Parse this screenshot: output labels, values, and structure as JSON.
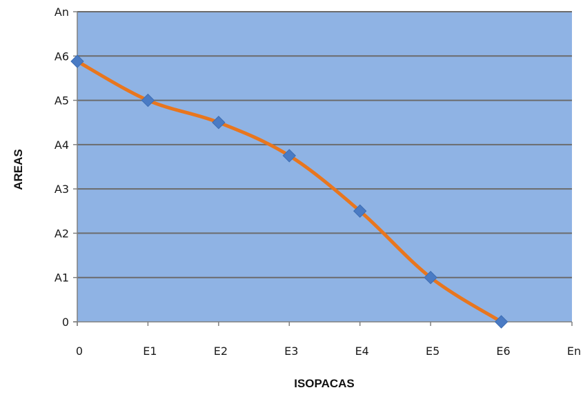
{
  "chart_data": {
    "type": "line",
    "title": "",
    "xlabel": "ISOPACAS",
    "ylabel": "AREAS",
    "x_ticks": [
      "0",
      "E1",
      "E2",
      "E3",
      "E4",
      "E5",
      "E6",
      "En"
    ],
    "y_ticks": [
      "0",
      "A1",
      "A2",
      "A3",
      "A4",
      "A5",
      "A6",
      "An"
    ],
    "ylim": [
      0,
      7
    ],
    "grid": "horizontal",
    "legend": "none",
    "series": [
      {
        "x": [
          "0",
          "E1",
          "E2",
          "E3",
          "E4",
          "E5",
          "E6"
        ],
        "values": [
          5.88,
          5.0,
          4.5,
          3.75,
          2.5,
          1.0,
          0.0
        ],
        "line_color": "#e8761e",
        "marker": "diamond",
        "marker_color": "#4a7bc4"
      }
    ],
    "colors": {
      "plot_background": "#8fb3e4",
      "gridline": "#6b6b6b"
    }
  }
}
